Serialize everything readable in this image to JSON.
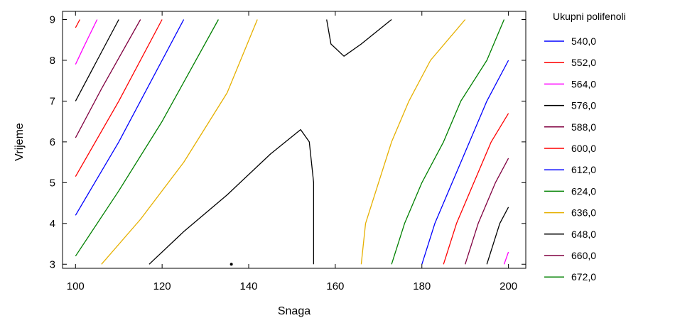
{
  "chart_data": {
    "type": "contour",
    "title": "",
    "xlabel": "Snaga",
    "ylabel": "Vrijeme",
    "xlim": [
      97,
      204
    ],
    "ylim": [
      2.9,
      9.2
    ],
    "xticks": [
      "100",
      "120",
      "140",
      "160",
      "180",
      "200"
    ],
    "yticks": [
      "3",
      "4",
      "5",
      "6",
      "7",
      "8",
      "9"
    ],
    "grid": false,
    "legend_placement": "right",
    "legend_title": "Ukupni polifenoli",
    "levels": [
      {
        "label": "540,0",
        "color": "#0000ff"
      },
      {
        "label": "552,0",
        "color": "#ff0000"
      },
      {
        "label": "564,0",
        "color": "#ff00ff"
      },
      {
        "label": "576,0",
        "color": "#000000"
      },
      {
        "label": "588,0",
        "color": "#800040"
      },
      {
        "label": "600,0",
        "color": "#ff0000"
      },
      {
        "label": "612,0",
        "color": "#0000ff"
      },
      {
        "label": "624,0",
        "color": "#008000"
      },
      {
        "label": "636,0",
        "color": "#e6b000"
      },
      {
        "label": "648,0",
        "color": "#000000"
      },
      {
        "label": "660,0",
        "color": "#800040"
      },
      {
        "label": "672,0",
        "color": "#008000"
      }
    ],
    "contours": [
      {
        "level": "564,0",
        "color": "#ff00ff",
        "points": [
          [
            100,
            7.9
          ],
          [
            102,
            8.35
          ],
          [
            105,
            9.0
          ]
        ]
      },
      {
        "level": "552,0",
        "color": "#ff0000",
        "points": [
          [
            100,
            8.8
          ],
          [
            101,
            9.0
          ]
        ]
      },
      {
        "level": "576,0",
        "color": "#000000",
        "points": [
          [
            100,
            7.0
          ],
          [
            105,
            8.0
          ],
          [
            110,
            9.0
          ]
        ]
      },
      {
        "level": "588,0",
        "color": "#800040",
        "points": [
          [
            100,
            6.1
          ],
          [
            106,
            7.3
          ],
          [
            115,
            9.0
          ]
        ]
      },
      {
        "level": "600,0",
        "color": "#ff0000",
        "points": [
          [
            100,
            5.15
          ],
          [
            110,
            7.0
          ],
          [
            120,
            9.0
          ]
        ]
      },
      {
        "level": "612,0",
        "color": "#0000ff",
        "points": [
          [
            100,
            4.2
          ],
          [
            110,
            6.0
          ],
          [
            125,
            9.0
          ]
        ]
      },
      {
        "level": "624,0",
        "color": "#008000",
        "points": [
          [
            100,
            3.2
          ],
          [
            110,
            4.8
          ],
          [
            120,
            6.5
          ],
          [
            133,
            9.0
          ]
        ]
      },
      {
        "level": "636,0",
        "color": "#e6b000",
        "points": [
          [
            106,
            3.0
          ],
          [
            115,
            4.1
          ],
          [
            125,
            5.5
          ],
          [
            135,
            7.2
          ],
          [
            142,
            9.0
          ]
        ]
      },
      {
        "level": "648,0",
        "color": "#000000",
        "points": [
          [
            117,
            3.0
          ],
          [
            125,
            3.8
          ],
          [
            135,
            4.7
          ],
          [
            145,
            5.7
          ],
          [
            152,
            6.3
          ],
          [
            154,
            6.0
          ],
          [
            155,
            5.0
          ],
          [
            155,
            3.0
          ]
        ]
      },
      {
        "level": "648,0",
        "color": "#000000",
        "points": [
          [
            158,
            9.0
          ],
          [
            159,
            8.4
          ],
          [
            162,
            8.1
          ],
          [
            166,
            8.4
          ],
          [
            173,
            9.0
          ]
        ]
      },
      {
        "level": "636,0",
        "color": "#e6b000",
        "points": [
          [
            166,
            3.0
          ],
          [
            167,
            4.0
          ],
          [
            170,
            5.0
          ],
          [
            173,
            6.0
          ],
          [
            177,
            7.0
          ],
          [
            182,
            8.0
          ],
          [
            190,
            9.0
          ]
        ]
      },
      {
        "level": "624,0",
        "color": "#008000",
        "points": [
          [
            173,
            3.0
          ],
          [
            176,
            4.0
          ],
          [
            180,
            5.0
          ],
          [
            185,
            6.0
          ],
          [
            189,
            7.0
          ],
          [
            195,
            8.0
          ],
          [
            199,
            9.0
          ]
        ]
      },
      {
        "level": "612,0",
        "color": "#0000ff",
        "points": [
          [
            180,
            3.0
          ],
          [
            183,
            4.0
          ],
          [
            187,
            5.0
          ],
          [
            191,
            6.0
          ],
          [
            195,
            7.0
          ],
          [
            200,
            8.0
          ]
        ]
      },
      {
        "level": "600,0",
        "color": "#ff0000",
        "points": [
          [
            185,
            3.0
          ],
          [
            188,
            4.0
          ],
          [
            192,
            5.0
          ],
          [
            196,
            6.0
          ],
          [
            200,
            6.7
          ]
        ]
      },
      {
        "level": "588,0",
        "color": "#800040",
        "points": [
          [
            190,
            3.0
          ],
          [
            193,
            4.0
          ],
          [
            197,
            5.0
          ],
          [
            200,
            5.6
          ]
        ]
      },
      {
        "level": "576,0",
        "color": "#000000",
        "points": [
          [
            195,
            3.0
          ],
          [
            198,
            4.0
          ],
          [
            200,
            4.4
          ]
        ]
      },
      {
        "level": "564,0",
        "color": "#ff00ff",
        "points": [
          [
            199,
            3.0
          ],
          [
            200,
            3.3
          ]
        ]
      }
    ],
    "markers": [
      {
        "x": 136,
        "y": 3.0
      }
    ]
  }
}
